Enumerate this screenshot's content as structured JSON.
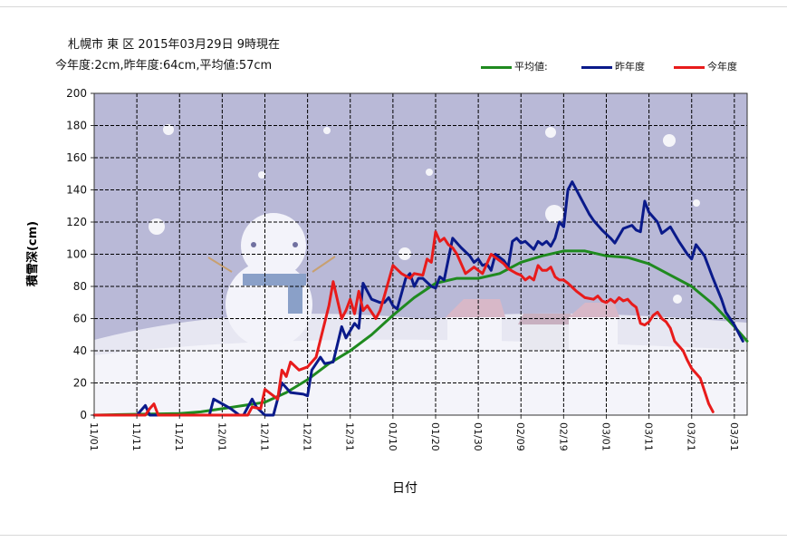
{
  "header": {
    "line1": "札幌市 東 区 2015年03月29日 9時現在",
    "line2": "今年度:2cm,昨年度:64cm,平均値:57cm"
  },
  "chart_data": {
    "type": "line",
    "title": "",
    "xlabel": "日付",
    "ylabel": "積雪深(cm)",
    "ylim": [
      0,
      200
    ],
    "yticks": [
      0,
      20,
      40,
      60,
      80,
      100,
      120,
      140,
      160,
      180,
      200
    ],
    "xlim": [
      0,
      153
    ],
    "xticks": [
      {
        "day": 0,
        "label": "11/01"
      },
      {
        "day": 10,
        "label": "11/11"
      },
      {
        "day": 20,
        "label": "11/21"
      },
      {
        "day": 30,
        "label": "12/01"
      },
      {
        "day": 40,
        "label": "12/11"
      },
      {
        "day": 50,
        "label": "12/21"
      },
      {
        "day": 60,
        "label": "12/31"
      },
      {
        "day": 70,
        "label": "01/10"
      },
      {
        "day": 80,
        "label": "01/20"
      },
      {
        "day": 90,
        "label": "01/30"
      },
      {
        "day": 100,
        "label": "02/09"
      },
      {
        "day": 110,
        "label": "02/19"
      },
      {
        "day": 120,
        "label": "03/01"
      },
      {
        "day": 130,
        "label": "03/11"
      },
      {
        "day": 140,
        "label": "03/21"
      },
      {
        "day": 150,
        "label": "03/31"
      }
    ],
    "grid": true,
    "legend_position": "top-right",
    "series": [
      {
        "name": "平均値:",
        "color": "#1f8a1f",
        "points": [
          [
            0,
            0
          ],
          [
            20,
            1
          ],
          [
            25,
            2
          ],
          [
            30,
            4
          ],
          [
            35,
            6
          ],
          [
            40,
            8
          ],
          [
            45,
            14
          ],
          [
            50,
            22
          ],
          [
            55,
            32
          ],
          [
            60,
            40
          ],
          [
            65,
            50
          ],
          [
            70,
            62
          ],
          [
            75,
            73
          ],
          [
            80,
            82
          ],
          [
            85,
            85
          ],
          [
            90,
            85
          ],
          [
            95,
            88
          ],
          [
            100,
            95
          ],
          [
            105,
            99
          ],
          [
            110,
            102
          ],
          [
            115,
            102
          ],
          [
            120,
            99
          ],
          [
            125,
            98
          ],
          [
            130,
            94
          ],
          [
            135,
            87
          ],
          [
            140,
            80
          ],
          [
            145,
            69
          ],
          [
            150,
            55
          ],
          [
            153,
            46
          ]
        ]
      },
      {
        "name": "昨年度",
        "color": "#0a1a8a",
        "points": [
          [
            0,
            0
          ],
          [
            10,
            0
          ],
          [
            12,
            6
          ],
          [
            13,
            0
          ],
          [
            14,
            0
          ],
          [
            27,
            0
          ],
          [
            28,
            10
          ],
          [
            30,
            7
          ],
          [
            32,
            4
          ],
          [
            34,
            0
          ],
          [
            35,
            0
          ],
          [
            37,
            10
          ],
          [
            38,
            5
          ],
          [
            40,
            0
          ],
          [
            42,
            0
          ],
          [
            44,
            20
          ],
          [
            46,
            14
          ],
          [
            49,
            13
          ],
          [
            50,
            12
          ],
          [
            51,
            28
          ],
          [
            53,
            36
          ],
          [
            54,
            32
          ],
          [
            56,
            33
          ],
          [
            58,
            55
          ],
          [
            59,
            48
          ],
          [
            61,
            57
          ],
          [
            62,
            54
          ],
          [
            63,
            82
          ],
          [
            65,
            72
          ],
          [
            67,
            70
          ],
          [
            68,
            70
          ],
          [
            69,
            73
          ],
          [
            70,
            68
          ],
          [
            71,
            66
          ],
          [
            73,
            85
          ],
          [
            74,
            88
          ],
          [
            75,
            80
          ],
          [
            76,
            85
          ],
          [
            77,
            85
          ],
          [
            79,
            80
          ],
          [
            80,
            79
          ],
          [
            81,
            86
          ],
          [
            82,
            84
          ],
          [
            84,
            110
          ],
          [
            86,
            104
          ],
          [
            88,
            99
          ],
          [
            89,
            95
          ],
          [
            90,
            97
          ],
          [
            91,
            93
          ],
          [
            92,
            94
          ],
          [
            93,
            90
          ],
          [
            94,
            100
          ],
          [
            96,
            96
          ],
          [
            97,
            92
          ],
          [
            98,
            108
          ],
          [
            99,
            110
          ],
          [
            100,
            107
          ],
          [
            101,
            108
          ],
          [
            103,
            103
          ],
          [
            104,
            108
          ],
          [
            105,
            106
          ],
          [
            106,
            108
          ],
          [
            107,
            105
          ],
          [
            108,
            110
          ],
          [
            109,
            120
          ],
          [
            110,
            117
          ],
          [
            111,
            140
          ],
          [
            112,
            145
          ],
          [
            114,
            135
          ],
          [
            116,
            125
          ],
          [
            117,
            121
          ],
          [
            119,
            115
          ],
          [
            121,
            110
          ],
          [
            122,
            107
          ],
          [
            124,
            116
          ],
          [
            126,
            118
          ],
          [
            127,
            115
          ],
          [
            128,
            114
          ],
          [
            129,
            133
          ],
          [
            130,
            126
          ],
          [
            132,
            120
          ],
          [
            133,
            113
          ],
          [
            135,
            117
          ],
          [
            137,
            108
          ],
          [
            139,
            100
          ],
          [
            140,
            97
          ],
          [
            141,
            106
          ],
          [
            143,
            99
          ],
          [
            145,
            85
          ],
          [
            147,
            72
          ],
          [
            148,
            64
          ],
          [
            150,
            56
          ],
          [
            152,
            46
          ]
        ]
      },
      {
        "name": "今年度",
        "color": "#e81b1b",
        "points": [
          [
            0,
            0
          ],
          [
            12,
            0
          ],
          [
            13,
            4
          ],
          [
            14,
            7
          ],
          [
            15,
            0
          ],
          [
            24,
            0
          ],
          [
            28,
            0
          ],
          [
            36,
            0
          ],
          [
            37,
            5
          ],
          [
            39,
            4
          ],
          [
            40,
            16
          ],
          [
            42,
            12
          ],
          [
            43,
            10
          ],
          [
            44,
            28
          ],
          [
            45,
            24
          ],
          [
            46,
            33
          ],
          [
            48,
            28
          ],
          [
            50,
            30
          ],
          [
            52,
            36
          ],
          [
            55,
            68
          ],
          [
            56,
            83
          ],
          [
            58,
            60
          ],
          [
            59,
            65
          ],
          [
            60,
            72
          ],
          [
            61,
            63
          ],
          [
            62,
            77
          ],
          [
            63,
            65
          ],
          [
            64,
            68
          ],
          [
            66,
            60
          ],
          [
            67,
            65
          ],
          [
            68,
            74
          ],
          [
            70,
            93
          ],
          [
            72,
            88
          ],
          [
            74,
            85
          ],
          [
            75,
            88
          ],
          [
            77,
            87
          ],
          [
            78,
            97
          ],
          [
            79,
            95
          ],
          [
            80,
            114
          ],
          [
            81,
            108
          ],
          [
            82,
            110
          ],
          [
            83,
            106
          ],
          [
            84,
            104
          ],
          [
            85,
            100
          ],
          [
            87,
            88
          ],
          [
            88,
            90
          ],
          [
            89,
            92
          ],
          [
            90,
            90
          ],
          [
            91,
            88
          ],
          [
            93,
            100
          ],
          [
            94,
            98
          ],
          [
            96,
            94
          ],
          [
            97,
            91
          ],
          [
            99,
            88
          ],
          [
            100,
            87
          ],
          [
            101,
            84
          ],
          [
            102,
            86
          ],
          [
            103,
            84
          ],
          [
            104,
            93
          ],
          [
            105,
            90
          ],
          [
            106,
            90
          ],
          [
            107,
            92
          ],
          [
            108,
            86
          ],
          [
            109,
            84
          ],
          [
            110,
            84
          ],
          [
            111,
            82
          ],
          [
            113,
            77
          ],
          [
            115,
            73
          ],
          [
            117,
            72
          ],
          [
            118,
            74
          ],
          [
            119,
            71
          ],
          [
            120,
            70
          ],
          [
            121,
            72
          ],
          [
            122,
            70
          ],
          [
            123,
            73
          ],
          [
            124,
            71
          ],
          [
            125,
            72
          ],
          [
            126,
            69
          ],
          [
            127,
            67
          ],
          [
            128,
            57
          ],
          [
            129,
            56
          ],
          [
            130,
            58
          ],
          [
            131,
            62
          ],
          [
            132,
            64
          ],
          [
            133,
            60
          ],
          [
            134,
            58
          ],
          [
            135,
            54
          ],
          [
            136,
            46
          ],
          [
            138,
            40
          ],
          [
            139,
            34
          ],
          [
            140,
            29
          ],
          [
            141,
            26
          ],
          [
            142,
            23
          ],
          [
            143,
            15
          ],
          [
            144,
            7
          ],
          [
            145,
            2
          ]
        ]
      }
    ]
  }
}
